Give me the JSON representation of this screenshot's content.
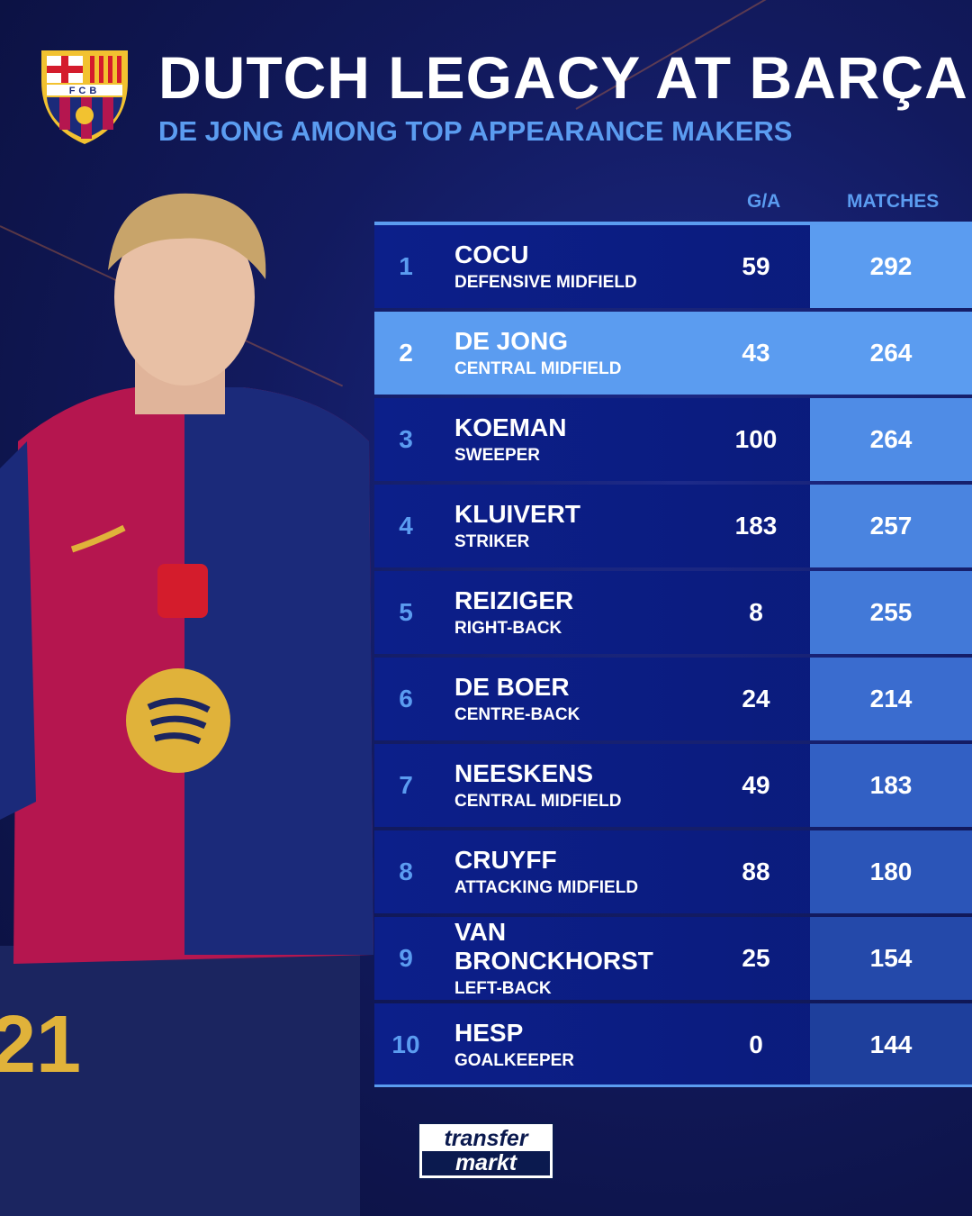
{
  "header": {
    "title": "DUTCH LEGACY AT BARÇA",
    "subtitle": "DE JONG AMONG TOP APPEARANCE MAKERS",
    "crest_text": "FCB"
  },
  "columns": {
    "ga": "G/A",
    "matches": "MATCHES"
  },
  "rows": [
    {
      "rank": "1",
      "name": "COCU",
      "position": "DEFENSIVE MIDFIELD",
      "ga": "59",
      "matches": "292"
    },
    {
      "rank": "2",
      "name": "DE JONG",
      "position": "CENTRAL MIDFIELD",
      "ga": "43",
      "matches": "264",
      "highlight": true
    },
    {
      "rank": "3",
      "name": "KOEMAN",
      "position": "SWEEPER",
      "ga": "100",
      "matches": "264"
    },
    {
      "rank": "4",
      "name": "KLUIVERT",
      "position": "STRIKER",
      "ga": "183",
      "matches": "257"
    },
    {
      "rank": "5",
      "name": "REIZIGER",
      "position": "RIGHT-BACK",
      "ga": "8",
      "matches": "255"
    },
    {
      "rank": "6",
      "name": "DE BOER",
      "position": "CENTRE-BACK",
      "ga": "24",
      "matches": "214"
    },
    {
      "rank": "7",
      "name": "NEESKENS",
      "position": "CENTRAL MIDFIELD",
      "ga": "49",
      "matches": "183"
    },
    {
      "rank": "8",
      "name": "CRUYFF",
      "position": "ATTACKING MIDFIELD",
      "ga": "88",
      "matches": "180"
    },
    {
      "rank": "9",
      "name": "VAN BRONCKHORST",
      "position": "LEFT-BACK",
      "ga": "25",
      "matches": "154"
    },
    {
      "rank": "10",
      "name": "HESP",
      "position": "GOALKEEPER",
      "ga": "0",
      "matches": "144"
    }
  ],
  "matches_colors": [
    "#5b9cf0",
    "#5b9cf0",
    "#4f8ce6",
    "#4a84e0",
    "#4279d8",
    "#3a6ccf",
    "#3260c4",
    "#2b55b8",
    "#2449aa",
    "#1e3f9c"
  ],
  "player": {
    "shirt_number": "21"
  },
  "brand": {
    "line1": "transfer",
    "line2": "markt"
  },
  "colors": {
    "accent": "#5b9cf0",
    "row": "#0c1f8a",
    "barca_red": "#b5164f",
    "barca_blue": "#1b2a7a"
  }
}
